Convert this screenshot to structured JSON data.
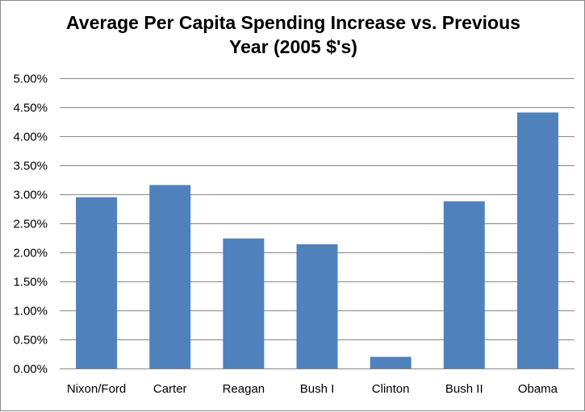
{
  "chart_data": {
    "type": "bar",
    "title_line1": "Average Per Capita Spending Increase vs. Previous",
    "title_line2": "Year (2005 $'s)",
    "categories": [
      "Nixon/Ford",
      "Carter",
      "Reagan",
      "Bush I",
      "Clinton",
      "Bush II",
      "Obama"
    ],
    "values": [
      2.95,
      3.16,
      2.24,
      2.14,
      0.2,
      2.88,
      4.41
    ],
    "unit": "%",
    "xlabel": "",
    "ylabel": "",
    "ylim": [
      0,
      5
    ],
    "yticks": [
      "0.00%",
      "0.50%",
      "1.00%",
      "1.50%",
      "2.00%",
      "2.50%",
      "3.00%",
      "3.50%",
      "4.00%",
      "4.50%",
      "5.00%"
    ],
    "grid": true,
    "legend": "none",
    "bar_color": "#4f81bd"
  }
}
